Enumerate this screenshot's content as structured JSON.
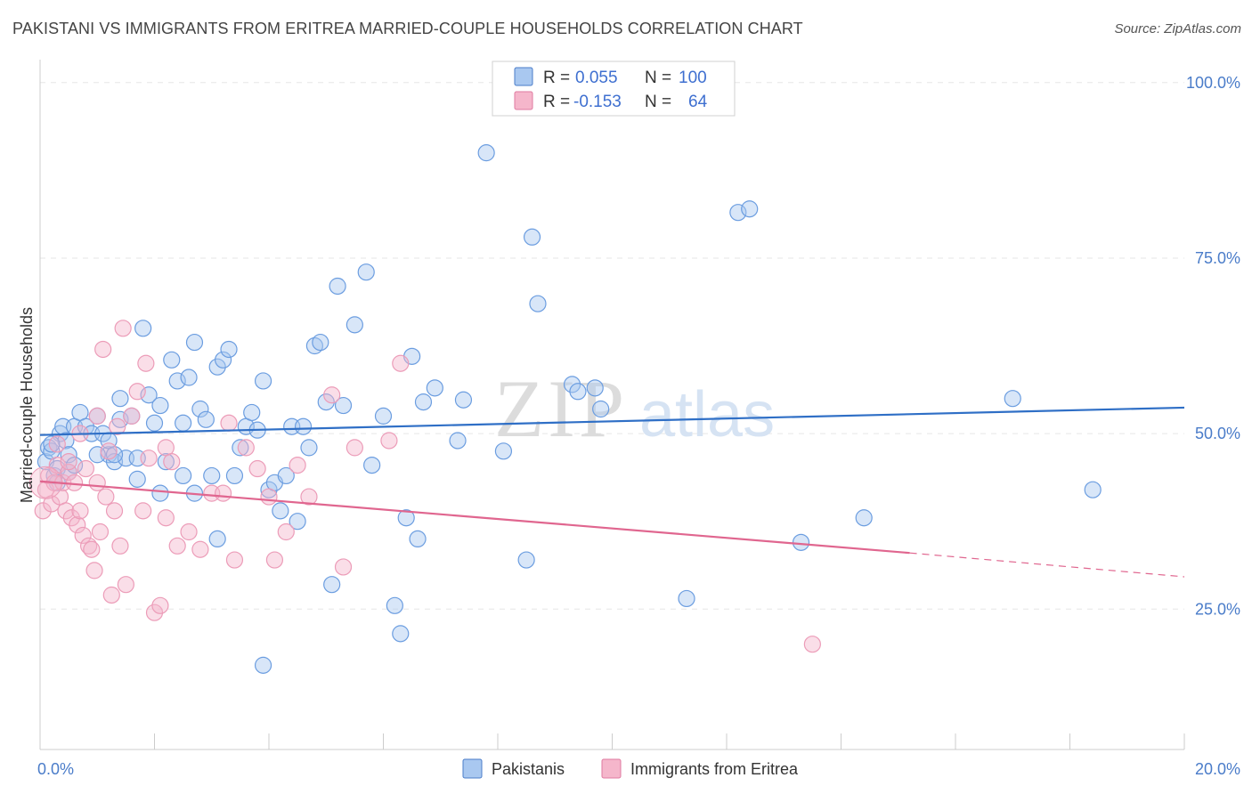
{
  "title": "PAKISTANI VS IMMIGRANTS FROM ERITREA MARRIED-COUPLE HOUSEHOLDS CORRELATION CHART",
  "source": "Source: ZipAtlas.com",
  "watermark": {
    "zip": "ZIP",
    "atlas": "atlas"
  },
  "legend_top": {
    "rows": [
      {
        "r_label": "R =",
        "r_value": "0.055",
        "n_label": "N =",
        "n_value": "100",
        "color": "#a9c8f0",
        "edge": "#4a7cc9"
      },
      {
        "r_label": "R =",
        "r_value": "-0.153",
        "n_label": "N =",
        "n_value": "64",
        "color": "#f5b6cb",
        "edge": "#e07aa0"
      }
    ]
  },
  "legend_bottom": {
    "items": [
      {
        "label": "Pakistanis",
        "color": "#a9c8f0",
        "edge": "#4a7cc9"
      },
      {
        "label": "Immigrants from Eritrea",
        "color": "#f5b6cb",
        "edge": "#e07aa0"
      }
    ]
  },
  "chart_data": {
    "type": "scatter",
    "title": "PAKISTANI VS IMMIGRANTS FROM ERITREA MARRIED-COUPLE HOUSEHOLDS CORRELATION CHART",
    "xlabel": "",
    "ylabel": "Married-couple Households",
    "xlim": [
      0,
      20
    ],
    "ylim": [
      5,
      102
    ],
    "x_tick_labels": [
      {
        "value": 0,
        "label": "0.0%"
      },
      {
        "value": 20,
        "label": "20.0%"
      }
    ],
    "y_tick_labels": [
      {
        "value": 25,
        "label": "25.0%"
      },
      {
        "value": 50,
        "label": "50.0%"
      },
      {
        "value": 75,
        "label": "75.0%"
      },
      {
        "value": 100,
        "label": "100.0%"
      }
    ],
    "grid": true,
    "legend": "top-center",
    "series": [
      {
        "name": "Pakistanis",
        "color": "#6b9de0",
        "trend": {
          "x": [
            0,
            20
          ],
          "y": [
            49.8,
            53.7
          ],
          "color": "#2f6fc6"
        },
        "points": [
          [
            0.1,
            46
          ],
          [
            0.15,
            48
          ],
          [
            0.2,
            47.5
          ],
          [
            0.25,
            44
          ],
          [
            0.3,
            45
          ],
          [
            0.35,
            50
          ],
          [
            0.4,
            51
          ],
          [
            0.45,
            49
          ],
          [
            0.5,
            47
          ],
          [
            0.5,
            44.5
          ],
          [
            0.6,
            51
          ],
          [
            0.7,
            53
          ],
          [
            0.8,
            51
          ],
          [
            0.9,
            50
          ],
          [
            1.0,
            52.5
          ],
          [
            1.1,
            50
          ],
          [
            1.2,
            47
          ],
          [
            1.3,
            46
          ],
          [
            1.4,
            52
          ],
          [
            1.5,
            46.5
          ],
          [
            1.0,
            47
          ],
          [
            1.2,
            49
          ],
          [
            1.4,
            55
          ],
          [
            1.6,
            52.5
          ],
          [
            1.7,
            43.5
          ],
          [
            1.8,
            65
          ],
          [
            1.9,
            55.5
          ],
          [
            2.0,
            51.5
          ],
          [
            2.1,
            54
          ],
          [
            2.2,
            46
          ],
          [
            2.3,
            60.5
          ],
          [
            2.4,
            57.5
          ],
          [
            2.5,
            51.5
          ],
          [
            2.6,
            58
          ],
          [
            2.7,
            63
          ],
          [
            2.8,
            53.5
          ],
          [
            2.9,
            52
          ],
          [
            3.0,
            44
          ],
          [
            3.1,
            59.5
          ],
          [
            3.2,
            60.5
          ],
          [
            3.3,
            62
          ],
          [
            3.4,
            44
          ],
          [
            3.5,
            48
          ],
          [
            3.6,
            51
          ],
          [
            3.7,
            53
          ],
          [
            3.8,
            50.5
          ],
          [
            3.9,
            57.5
          ],
          [
            4.0,
            42
          ],
          [
            4.1,
            43
          ],
          [
            4.2,
            39
          ],
          [
            4.3,
            44
          ],
          [
            4.4,
            51
          ],
          [
            4.5,
            37.5
          ],
          [
            4.6,
            51
          ],
          [
            4.7,
            48
          ],
          [
            4.8,
            62.5
          ],
          [
            4.9,
            63
          ],
          [
            5.0,
            54.5
          ],
          [
            5.1,
            28.5
          ],
          [
            5.2,
            71
          ],
          [
            5.3,
            54
          ],
          [
            5.5,
            65.5
          ],
          [
            5.7,
            73
          ],
          [
            5.8,
            45.5
          ],
          [
            6.0,
            52.5
          ],
          [
            6.2,
            25.5
          ],
          [
            6.3,
            21.5
          ],
          [
            6.4,
            38
          ],
          [
            6.5,
            61
          ],
          [
            6.6,
            35
          ],
          [
            6.7,
            54.5
          ],
          [
            6.9,
            56.5
          ],
          [
            7.3,
            49
          ],
          [
            7.4,
            54.8
          ],
          [
            7.8,
            90
          ],
          [
            8.1,
            47.5
          ],
          [
            8.5,
            32
          ],
          [
            8.6,
            78
          ],
          [
            8.7,
            68.5
          ],
          [
            9.3,
            57
          ],
          [
            9.4,
            56
          ],
          [
            9.7,
            56.5
          ],
          [
            9.8,
            53.5
          ],
          [
            11.3,
            26.5
          ],
          [
            12.2,
            81.5
          ],
          [
            12.4,
            82
          ],
          [
            13.3,
            34.5
          ],
          [
            14.4,
            38
          ],
          [
            17.0,
            55
          ],
          [
            18.4,
            42
          ],
          [
            0.2,
            48.5
          ],
          [
            0.3,
            43
          ],
          [
            0.6,
            45.5
          ],
          [
            1.3,
            47
          ],
          [
            2.1,
            41.5
          ],
          [
            2.7,
            41.5
          ],
          [
            3.1,
            35
          ],
          [
            3.9,
            17
          ],
          [
            2.5,
            44
          ],
          [
            1.7,
            46.5
          ]
        ]
      },
      {
        "name": "Immigrants from Eritrea",
        "color": "#f0a4bd",
        "trend": {
          "x": [
            0,
            15.2,
            20
          ],
          "y": [
            43.2,
            33.0,
            29.6
          ],
          "dashed_from": 15.2,
          "color": "#e0668f"
        },
        "points": [
          [
            0.05,
            39
          ],
          [
            0.1,
            42
          ],
          [
            0.15,
            44
          ],
          [
            0.2,
            40
          ],
          [
            0.25,
            43
          ],
          [
            0.3,
            45.5
          ],
          [
            0.35,
            41
          ],
          [
            0.4,
            43
          ],
          [
            0.45,
            39
          ],
          [
            0.5,
            44.5
          ],
          [
            0.55,
            38
          ],
          [
            0.6,
            43
          ],
          [
            0.65,
            37
          ],
          [
            0.7,
            39
          ],
          [
            0.75,
            35.5
          ],
          [
            0.8,
            45
          ],
          [
            0.85,
            34
          ],
          [
            0.9,
            33.5
          ],
          [
            0.95,
            30.5
          ],
          [
            1.0,
            52.5
          ],
          [
            1.05,
            36
          ],
          [
            1.1,
            62
          ],
          [
            1.15,
            41
          ],
          [
            1.2,
            47.5
          ],
          [
            1.25,
            27
          ],
          [
            1.3,
            39
          ],
          [
            1.35,
            51
          ],
          [
            1.4,
            34
          ],
          [
            1.45,
            65
          ],
          [
            1.5,
            28.5
          ],
          [
            1.6,
            52.5
          ],
          [
            1.7,
            56
          ],
          [
            1.8,
            39
          ],
          [
            1.85,
            60
          ],
          [
            1.9,
            46.5
          ],
          [
            2.0,
            24.5
          ],
          [
            2.1,
            25.5
          ],
          [
            2.2,
            48
          ],
          [
            2.3,
            46
          ],
          [
            2.4,
            34
          ],
          [
            2.6,
            36
          ],
          [
            2.8,
            33.5
          ],
          [
            3.0,
            41.5
          ],
          [
            3.2,
            41.5
          ],
          [
            3.4,
            32
          ],
          [
            3.6,
            48
          ],
          [
            3.8,
            45
          ],
          [
            4.0,
            41
          ],
          [
            4.1,
            32
          ],
          [
            4.3,
            36
          ],
          [
            4.5,
            45.5
          ],
          [
            4.7,
            41
          ],
          [
            5.1,
            55.5
          ],
          [
            5.3,
            31
          ],
          [
            5.5,
            48
          ],
          [
            6.1,
            49
          ],
          [
            6.3,
            60
          ],
          [
            13.5,
            20
          ],
          [
            0.7,
            50
          ],
          [
            1.0,
            43
          ],
          [
            0.3,
            48.5
          ],
          [
            0.5,
            46
          ],
          [
            3.3,
            51.5
          ],
          [
            2.2,
            38
          ]
        ]
      }
    ]
  }
}
